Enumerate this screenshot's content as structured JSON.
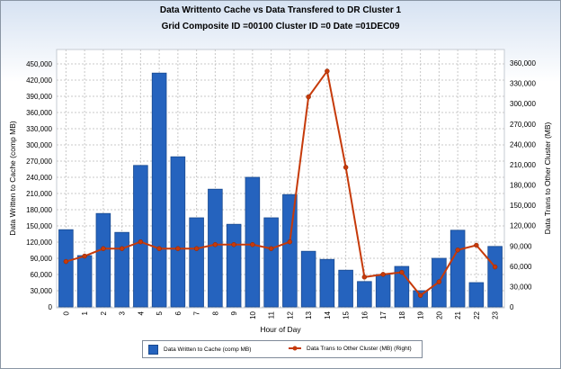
{
  "chart_data": {
    "type": "bar+line",
    "title": "Data Writtento Cache vs Data Transfered to DR Cluster 1",
    "subtitle": "Grid Composite ID =00100  Cluster ID =0  Date =01DEC09",
    "xlabel": "Hour of Day",
    "ylabel_left": "Data Written to Cache (comp MB)",
    "ylabel_right": "Data Trans to Other Cluster (MB)",
    "categories": [
      "0",
      "1",
      "2",
      "3",
      "4",
      "5",
      "6",
      "7",
      "8",
      "9",
      "10",
      "11",
      "12",
      "13",
      "14",
      "15",
      "16",
      "17",
      "18",
      "19",
      "20",
      "21",
      "22",
      "23"
    ],
    "ylim_left": [
      0,
      450000
    ],
    "ylim_right": [
      0,
      360000
    ],
    "yticks_left": [
      "0",
      "30,000",
      "60,000",
      "90,000",
      "120,000",
      "150,000",
      "180,000",
      "210,000",
      "240,000",
      "270,000",
      "300,000",
      "330,000",
      "360,000",
      "390,000",
      "420,000",
      "450,000"
    ],
    "yticks_right": [
      "0",
      "30,000",
      "60,000",
      "90,000",
      "120,000",
      "150,000",
      "180,000",
      "210,000",
      "240,000",
      "270,000",
      "300,000",
      "330,000",
      "360,000"
    ],
    "grid": true,
    "legend_position": "bottom",
    "series": [
      {
        "name": "Data Written to Cache (comp MB)",
        "type": "bar",
        "axis": "left",
        "color": "#2563be",
        "values": [
          143000,
          95000,
          173000,
          138000,
          262000,
          433000,
          278000,
          165000,
          218000,
          153000,
          240000,
          165000,
          208000,
          103000,
          88000,
          68000,
          47000,
          60000,
          75000,
          30000,
          90000,
          142000,
          45000,
          112000
        ]
      },
      {
        "name": "Data Trans to Other Cluster (MB) (Right)",
        "type": "line",
        "axis": "right",
        "color": "#c63a0a",
        "values": [
          67000,
          75000,
          86000,
          86000,
          96000,
          86000,
          86000,
          86000,
          92000,
          92000,
          92000,
          86000,
          96000,
          310000,
          348000,
          206000,
          44000,
          48000,
          51000,
          17000,
          37000,
          84000,
          91000,
          59000
        ]
      }
    ]
  }
}
